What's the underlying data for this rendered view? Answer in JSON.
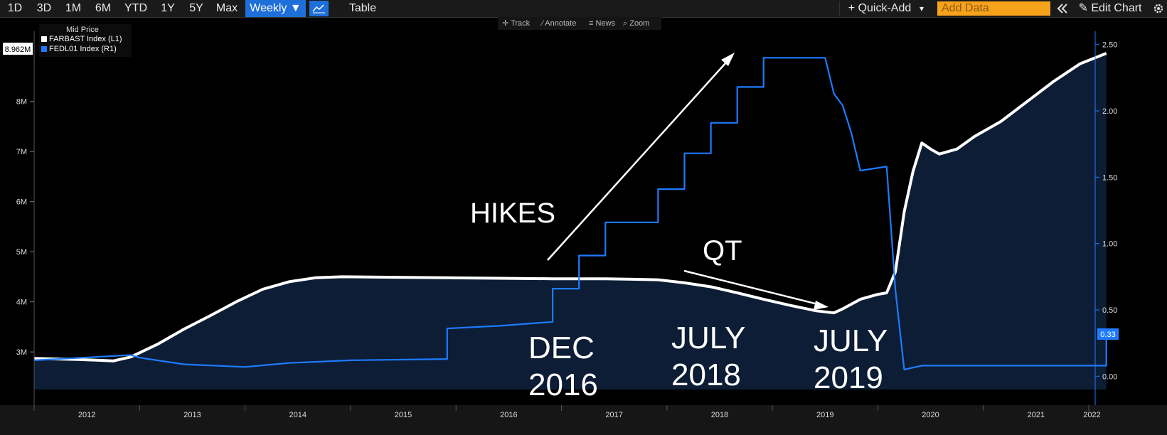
{
  "toolbar": {
    "ranges": [
      "1D",
      "3D",
      "1M",
      "6M",
      "YTD",
      "1Y",
      "5Y",
      "Max"
    ],
    "frequency": "Weekly ▼",
    "chart_icon": "line-chart-icon",
    "table_label": "Table",
    "quick_add": "+ Quick-Add",
    "quick_add_caret": "▾",
    "add_data_placeholder": "Add Data",
    "collapse_icon": "double-chevron-left-icon",
    "edit_chart": "✎ Edit Chart",
    "settings_icon": "gear-icon"
  },
  "subbar": {
    "track": "Track",
    "annotate": "Annotate",
    "news": "News",
    "zoom": "Zoom"
  },
  "legend": {
    "title": "Mid Price",
    "items": [
      {
        "label": "FARBAST Index  (L1)",
        "color": "#ffffff"
      },
      {
        "label": "FEDL01 Index  (R1)",
        "color": "#1e7bff"
      }
    ]
  },
  "chart_data": {
    "type": "line",
    "x_axis": {
      "ticks": [
        "2012",
        "2013",
        "2014",
        "2015",
        "2016",
        "2017",
        "2018",
        "2019",
        "2020",
        "2021",
        "2022"
      ]
    },
    "left_axis": {
      "ticks": [
        "3M",
        "4M",
        "5M",
        "6M",
        "7M",
        "8M"
      ],
      "range": [
        2.25,
        9.4
      ]
    },
    "right_axis": {
      "ticks": [
        "0.00",
        "0.50",
        "1.00",
        "1.50",
        "2.00",
        "2.50"
      ],
      "range": [
        -0.1,
        2.6
      ]
    },
    "left_last_value": "8.962M",
    "right_last_value": "0.33",
    "series": [
      {
        "name": "FARBAST Index  (L1)",
        "axis": "left",
        "color": "#ffffff",
        "fill": "#0d1d35",
        "unit": "M",
        "points": [
          [
            "2012-01",
            2.87
          ],
          [
            "2012-06",
            2.85
          ],
          [
            "2012-10",
            2.82
          ],
          [
            "2012-12",
            2.9
          ],
          [
            "2013-03",
            3.15
          ],
          [
            "2013-06",
            3.45
          ],
          [
            "2013-09",
            3.72
          ],
          [
            "2013-12",
            4.0
          ],
          [
            "2014-03",
            4.25
          ],
          [
            "2014-06",
            4.4
          ],
          [
            "2014-09",
            4.48
          ],
          [
            "2014-12",
            4.5
          ],
          [
            "2015-06",
            4.49
          ],
          [
            "2015-12",
            4.48
          ],
          [
            "2016-06",
            4.47
          ],
          [
            "2016-12",
            4.46
          ],
          [
            "2017-06",
            4.46
          ],
          [
            "2017-12",
            4.44
          ],
          [
            "2018-03",
            4.38
          ],
          [
            "2018-06",
            4.3
          ],
          [
            "2018-09",
            4.18
          ],
          [
            "2018-12",
            4.05
          ],
          [
            "2019-03",
            3.93
          ],
          [
            "2019-06",
            3.82
          ],
          [
            "2019-08",
            3.78
          ],
          [
            "2019-09",
            3.86
          ],
          [
            "2019-11",
            4.05
          ],
          [
            "2020-01",
            4.15
          ],
          [
            "2020-02",
            4.18
          ],
          [
            "2020-03",
            4.6
          ],
          [
            "2020-04",
            5.8
          ],
          [
            "2020-05",
            6.6
          ],
          [
            "2020-06",
            7.17
          ],
          [
            "2020-07",
            7.05
          ],
          [
            "2020-08",
            6.95
          ],
          [
            "2020-10",
            7.05
          ],
          [
            "2020-12",
            7.3
          ],
          [
            "2021-03",
            7.6
          ],
          [
            "2021-06",
            8.0
          ],
          [
            "2021-09",
            8.4
          ],
          [
            "2021-12",
            8.75
          ],
          [
            "2022-03",
            8.96
          ]
        ]
      },
      {
        "name": "FEDL01 Index  (R1)",
        "axis": "right",
        "color": "#1e7bff",
        "unit": "",
        "points": [
          [
            "2012-01",
            0.12
          ],
          [
            "2012-12",
            0.16
          ],
          [
            "2013-01",
            0.14
          ],
          [
            "2013-06",
            0.09
          ],
          [
            "2014-01",
            0.07
          ],
          [
            "2014-06",
            0.1
          ],
          [
            "2015-01",
            0.12
          ],
          [
            "2015-12",
            0.13
          ],
          [
            "2015-12",
            0.36
          ],
          [
            "2016-06",
            0.38
          ],
          [
            "2016-12",
            0.41
          ],
          [
            "2016-12",
            0.66
          ],
          [
            "2017-03",
            0.66
          ],
          [
            "2017-03",
            0.91
          ],
          [
            "2017-06",
            0.91
          ],
          [
            "2017-06",
            1.16
          ],
          [
            "2017-12",
            1.16
          ],
          [
            "2017-12",
            1.41
          ],
          [
            "2018-03",
            1.41
          ],
          [
            "2018-03",
            1.68
          ],
          [
            "2018-06",
            1.68
          ],
          [
            "2018-06",
            1.91
          ],
          [
            "2018-09",
            1.91
          ],
          [
            "2018-09",
            2.18
          ],
          [
            "2018-12",
            2.18
          ],
          [
            "2018-12",
            2.4
          ],
          [
            "2019-07",
            2.4
          ],
          [
            "2019-08",
            2.13
          ],
          [
            "2019-09",
            2.04
          ],
          [
            "2019-10",
            1.83
          ],
          [
            "2019-11",
            1.55
          ],
          [
            "2020-02",
            1.58
          ],
          [
            "2020-03",
            0.65
          ],
          [
            "2020-04",
            0.05
          ],
          [
            "2020-06",
            0.08
          ],
          [
            "2021-01",
            0.08
          ],
          [
            "2021-06",
            0.08
          ],
          [
            "2022-03",
            0.08
          ],
          [
            "2022-03",
            0.33
          ]
        ]
      }
    ],
    "annotations": [
      {
        "text": "HIKES",
        "type": "text"
      },
      {
        "text": "QT",
        "type": "text"
      },
      {
        "text": "DEC\n2016",
        "type": "text"
      },
      {
        "text": "JULY\n2018",
        "type": "text"
      },
      {
        "text": "JULY\n2019",
        "type": "text"
      }
    ]
  }
}
